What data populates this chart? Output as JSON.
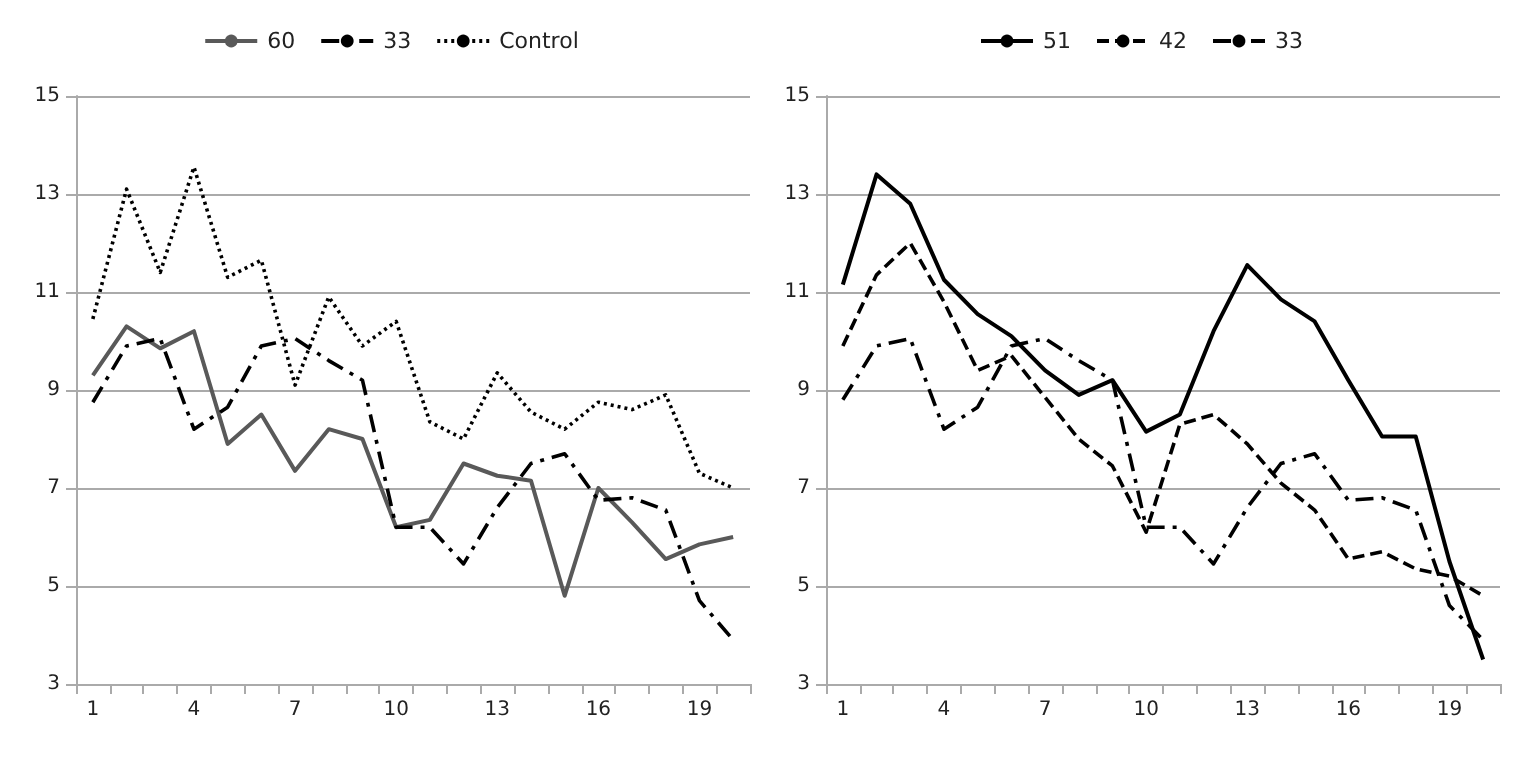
{
  "chart_data": [
    {
      "type": "line",
      "categories": [
        "1",
        null,
        null,
        "4",
        null,
        null,
        "7",
        null,
        null,
        "10",
        null,
        null,
        "13",
        null,
        null,
        "16",
        null,
        null,
        "19",
        null
      ],
      "ylim": [
        3,
        15
      ],
      "yticks": [
        3,
        5,
        7,
        9,
        11,
        13,
        15
      ],
      "grid": "y",
      "legend": "top",
      "marker": "none",
      "series": [
        {
          "name": "60",
          "color": "#595959",
          "line_style": "solid",
          "values": [
            9.3,
            10.3,
            9.85,
            10.2,
            7.9,
            8.5,
            7.35,
            8.2,
            8.0,
            6.2,
            6.35,
            7.5,
            7.25,
            7.15,
            4.8,
            7.0,
            6.3,
            5.55,
            5.85,
            6.0
          ]
        },
        {
          "name": "33",
          "color": "#000000",
          "line_style": "dashdot",
          "values": [
            8.75,
            9.9,
            10.05,
            8.2,
            8.65,
            9.9,
            10.05,
            9.6,
            9.2,
            6.2,
            6.2,
            5.45,
            6.6,
            7.5,
            7.7,
            6.75,
            6.8,
            6.55,
            4.7,
            3.9
          ]
        },
        {
          "name": "Control",
          "color": "#000000",
          "line_style": "dotted",
          "values": [
            10.45,
            13.1,
            11.4,
            13.55,
            11.3,
            11.65,
            9.1,
            10.9,
            9.9,
            10.4,
            8.35,
            8.0,
            9.35,
            8.55,
            8.2,
            8.75,
            8.6,
            8.9,
            7.3,
            7.0
          ]
        }
      ]
    },
    {
      "type": "line",
      "categories": [
        "1",
        null,
        null,
        "4",
        null,
        null,
        "7",
        null,
        null,
        "10",
        null,
        null,
        "13",
        null,
        null,
        "16",
        null,
        null,
        "19",
        null
      ],
      "ylim": [
        3,
        15
      ],
      "yticks": [
        3,
        5,
        7,
        9,
        11,
        13,
        15
      ],
      "grid": "y",
      "legend": "top",
      "marker": "none",
      "series": [
        {
          "name": "51",
          "color": "#000000",
          "line_style": "solid",
          "values": [
            11.15,
            13.4,
            12.8,
            11.25,
            10.55,
            10.1,
            9.4,
            8.9,
            9.2,
            8.15,
            8.5,
            10.2,
            11.55,
            10.85,
            10.4,
            9.2,
            8.05,
            8.05,
            5.5,
            3.5
          ]
        },
        {
          "name": "42",
          "color": "#000000",
          "line_style": "dashed",
          "values": [
            9.9,
            11.35,
            12.0,
            10.8,
            9.4,
            9.7,
            8.85,
            8.0,
            7.45,
            6.1,
            8.3,
            8.5,
            7.9,
            7.1,
            6.55,
            5.55,
            5.7,
            5.35,
            5.2,
            4.8
          ]
        },
        {
          "name": "33",
          "color": "#000000",
          "line_style": "dashdot",
          "values": [
            8.8,
            9.9,
            10.05,
            8.2,
            8.65,
            9.9,
            10.05,
            9.6,
            9.2,
            6.2,
            6.2,
            5.45,
            6.6,
            7.5,
            7.7,
            6.75,
            6.8,
            6.55,
            4.6,
            3.9
          ]
        }
      ]
    }
  ]
}
